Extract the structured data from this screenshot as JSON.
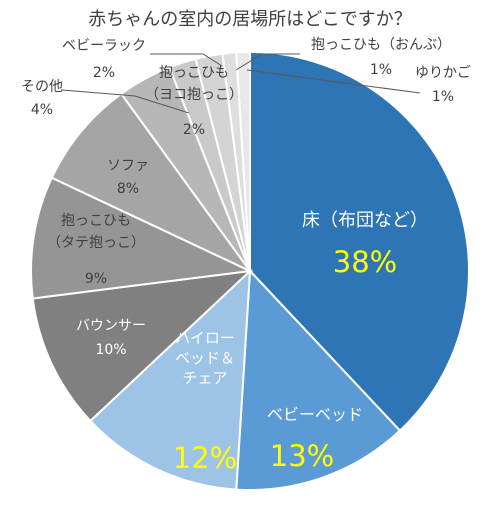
{
  "chart_data": {
    "type": "pie",
    "title": "赤ちゃんの室内の居場所はどこですか？",
    "slices": [
      {
        "label": "床（布団など）",
        "value": 38,
        "value_label": "38%",
        "color": "#2e75b6"
      },
      {
        "label": "ベビーベッド",
        "value": 13,
        "value_label": "13%",
        "color": "#5b9bd5"
      },
      {
        "label": "ハイロー\nベッド＆\nチェア",
        "value": 12,
        "value_label": "12%",
        "color": "#9dc3e6"
      },
      {
        "label": "バウンサー",
        "value": 10,
        "value_label": "10%",
        "color": "#808080"
      },
      {
        "label": "抱っこひも\n（タテ抱っこ）",
        "value": 9,
        "value_label": "9%",
        "color": "#959595"
      },
      {
        "label": "ソファ",
        "value": 8,
        "value_label": "8%",
        "color": "#a5a5a5"
      },
      {
        "label": "その他",
        "value": 4,
        "value_label": "4%",
        "color": "#b7b7b7"
      },
      {
        "label": "抱っこひも\n（ヨコ抱っこ）",
        "value": 2,
        "value_label": "2%",
        "color": "#c9c9c9"
      },
      {
        "label": "ベビーラック",
        "value": 2,
        "value_label": "2%",
        "color": "#d4d4d4"
      },
      {
        "label": "抱っこひも（おんぶ）",
        "value": 1,
        "value_label": "1%",
        "color": "#dedede"
      },
      {
        "label": "ゆりかご",
        "value": 1,
        "value_label": "1%",
        "color": "#e8e8e8"
      }
    ]
  }
}
